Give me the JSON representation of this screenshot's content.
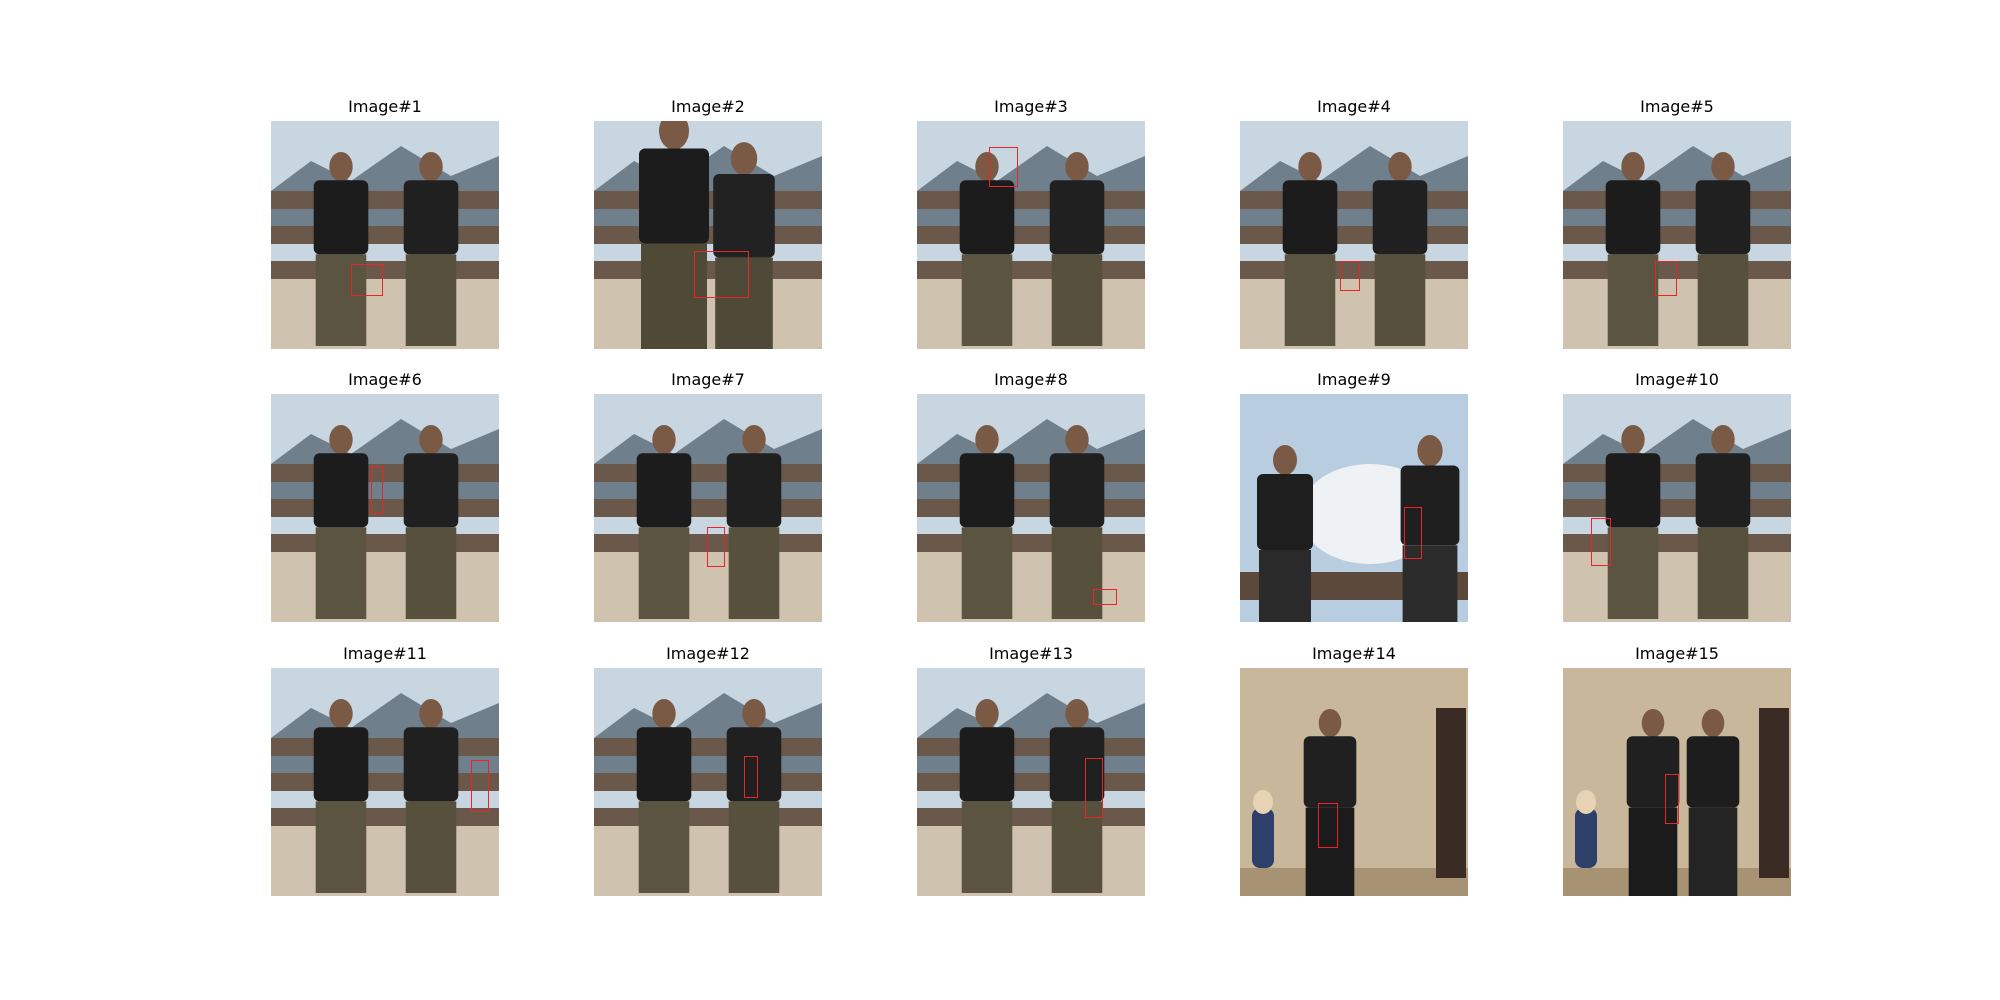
{
  "figure": {
    "panels": [
      {
        "title": "Image#1",
        "scene": "outdoor",
        "box_color": "#e8262a"
      },
      {
        "title": "Image#2",
        "scene": "outdoor-close",
        "box_color": "#e8262a"
      },
      {
        "title": "Image#3",
        "scene": "outdoor",
        "box_color": "#e8262a"
      },
      {
        "title": "Image#4",
        "scene": "outdoor",
        "box_color": "#e8262a"
      },
      {
        "title": "Image#5",
        "scene": "outdoor",
        "box_color": "#e8262a"
      },
      {
        "title": "Image#6",
        "scene": "outdoor",
        "box_color": "#e8262a"
      },
      {
        "title": "Image#7",
        "scene": "outdoor",
        "box_color": "#e8262a"
      },
      {
        "title": "Image#8",
        "scene": "outdoor",
        "box_color": "#e8262a"
      },
      {
        "title": "Image#9",
        "scene": "sky",
        "box_color": "#e8262a"
      },
      {
        "title": "Image#10",
        "scene": "outdoor",
        "box_color": "#e8262a"
      },
      {
        "title": "Image#11",
        "scene": "outdoor",
        "box_color": "#e8262a"
      },
      {
        "title": "Image#12",
        "scene": "outdoor",
        "box_color": "#e8262a"
      },
      {
        "title": "Image#13",
        "scene": "outdoor",
        "box_color": "#e8262a"
      },
      {
        "title": "Image#14",
        "scene": "indoor",
        "box_color": "#e8262a"
      },
      {
        "title": "Image#15",
        "scene": "indoor",
        "box_color": "#e8262a"
      }
    ]
  }
}
